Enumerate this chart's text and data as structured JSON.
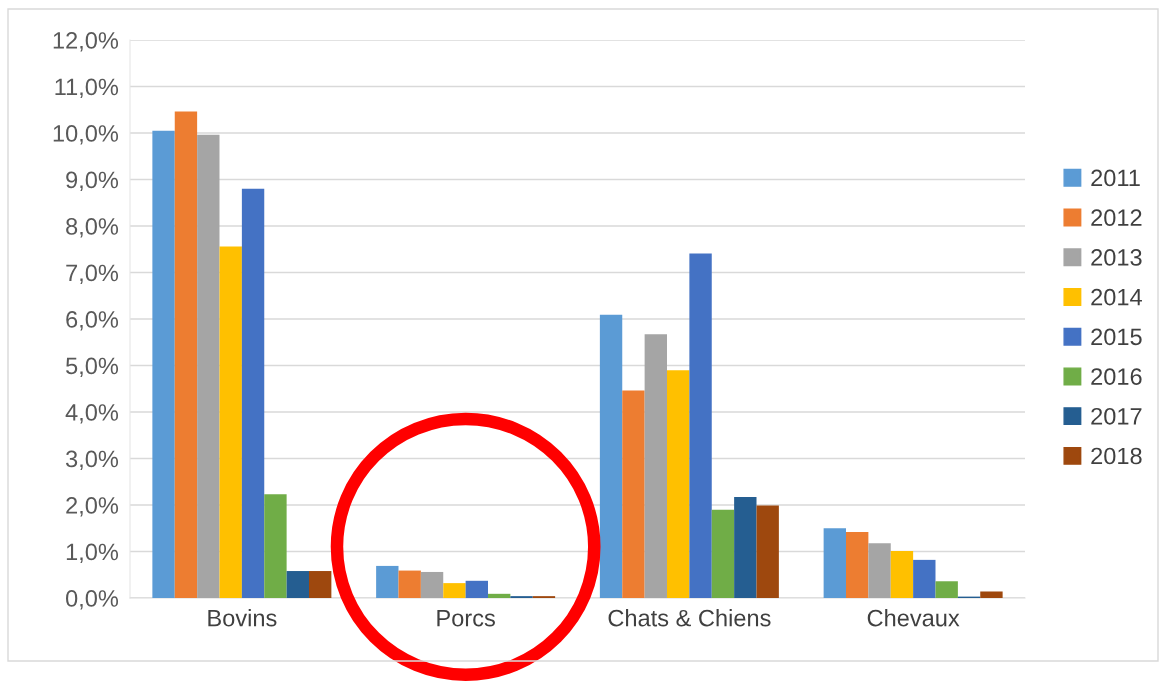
{
  "chart_data": {
    "type": "bar",
    "categories": [
      "Bovins",
      "Porcs",
      "Chats & Chiens",
      "Chevaux"
    ],
    "series": [
      {
        "name": "2011",
        "color": "#5b9bd5",
        "values": [
          10.05,
          0.69,
          6.09,
          1.5
        ]
      },
      {
        "name": "2012",
        "color": "#ed7d31",
        "values": [
          10.46,
          0.59,
          4.46,
          1.42
        ]
      },
      {
        "name": "2013",
        "color": "#a5a5a5",
        "values": [
          9.96,
          0.56,
          5.67,
          1.18
        ]
      },
      {
        "name": "2014",
        "color": "#ffc000",
        "values": [
          7.56,
          0.32,
          4.9,
          1.01
        ]
      },
      {
        "name": "2015",
        "color": "#4472c4",
        "values": [
          8.8,
          0.37,
          7.41,
          0.82
        ]
      },
      {
        "name": "2016",
        "color": "#70ad47",
        "values": [
          2.23,
          0.09,
          1.9,
          0.36
        ]
      },
      {
        "name": "2017",
        "color": "#255e91",
        "values": [
          0.58,
          0.04,
          2.17,
          0.03
        ]
      },
      {
        "name": "2018",
        "color": "#9e480e",
        "values": [
          0.58,
          0.04,
          1.99,
          0.14
        ]
      }
    ],
    "ylim": [
      0,
      12
    ],
    "yticks": [
      {
        "value": 0,
        "label": "0,0%"
      },
      {
        "value": 1,
        "label": "1,0%"
      },
      {
        "value": 2,
        "label": "2,0%"
      },
      {
        "value": 3,
        "label": "3,0%"
      },
      {
        "value": 4,
        "label": "4,0%"
      },
      {
        "value": 5,
        "label": "5,0%"
      },
      {
        "value": 6,
        "label": "6,0%"
      },
      {
        "value": 7,
        "label": "7,0%"
      },
      {
        "value": 8,
        "label": "8,0%"
      },
      {
        "value": 9,
        "label": "9,0%"
      },
      {
        "value": 10,
        "label": "10,0%"
      },
      {
        "value": 11,
        "label": "11,0%"
      },
      {
        "value": 12,
        "label": "12,0%"
      }
    ],
    "grid": "y",
    "legend": "right"
  }
}
